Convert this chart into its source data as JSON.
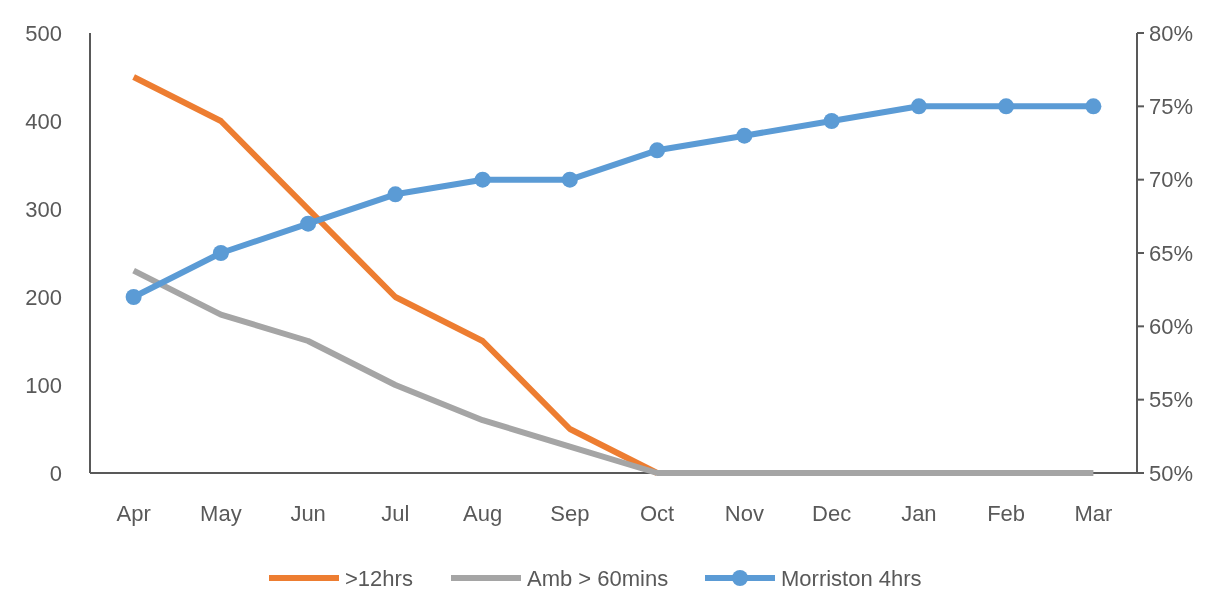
{
  "chart_data": {
    "type": "line",
    "categories": [
      "Apr",
      "May",
      "Jun",
      "Jul",
      "Aug",
      "Sep",
      "Oct",
      "Nov",
      "Dec",
      "Jan",
      "Feb",
      "Mar"
    ],
    "series": [
      {
        "name": ">12hrs",
        "color": "#ed7d31",
        "marker": "none",
        "values": [
          450,
          400,
          300,
          200,
          150,
          50,
          0,
          null,
          null,
          null,
          null,
          null
        ]
      },
      {
        "name": "Amb > 60mins",
        "color": "#a5a5a5",
        "marker": "none",
        "values": [
          230,
          180,
          150,
          100,
          60,
          30,
          0,
          0,
          0,
          0,
          0,
          0
        ]
      },
      {
        "name": "Morriston 4hrs",
        "color": "#5b9bd5",
        "marker": "circle",
        "axis": "y2",
        "values": [
          62,
          65,
          67,
          69,
          70,
          70,
          72,
          73,
          74,
          75,
          75,
          75
        ]
      }
    ],
    "ylim": [
      0,
      500
    ],
    "yticks": [
      0,
      100,
      200,
      300,
      400,
      500
    ],
    "y2lim": [
      50,
      80
    ],
    "y2ticks": [
      {
        "value": 50,
        "label": "50%"
      },
      {
        "value": 55,
        "label": "55%"
      },
      {
        "value": 60,
        "label": "60%"
      },
      {
        "value": 65,
        "label": "65%"
      },
      {
        "value": 70,
        "label": "70%"
      },
      {
        "value": 75,
        "label": "75%"
      },
      {
        "value": 80,
        "label": "80%"
      }
    ],
    "grid": false,
    "legend": "bottom"
  }
}
